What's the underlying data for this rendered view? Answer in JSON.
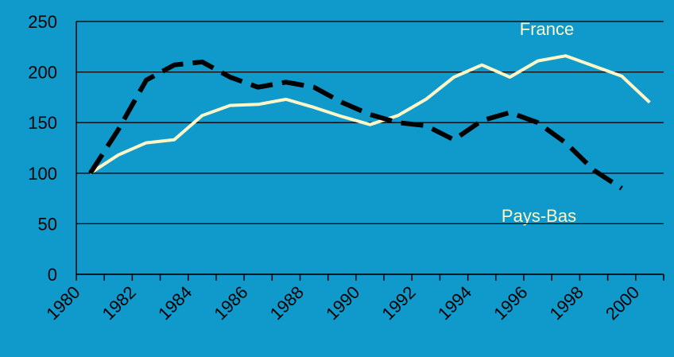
{
  "chart_data": {
    "type": "line",
    "categories": [
      "1980",
      null,
      "1982",
      null,
      "1984",
      null,
      "1986",
      null,
      "1988",
      null,
      "1990",
      null,
      "1992",
      null,
      "1994",
      null,
      "1996",
      null,
      "1998",
      null,
      "2000"
    ],
    "series": [
      {
        "name": "France",
        "color": "#fdf7c8",
        "dashed": false,
        "values": [
          100,
          118,
          130,
          133,
          157,
          167,
          168,
          173,
          165,
          156,
          148,
          157,
          173,
          195,
          207,
          195,
          211,
          216,
          206,
          196,
          170
        ]
      },
      {
        "name": "Pays-Bas",
        "color": "#000000",
        "dashed": true,
        "values": [
          100,
          143,
          192,
          207,
          210,
          195,
          185,
          190,
          185,
          170,
          158,
          150,
          147,
          133,
          152,
          160,
          150,
          130,
          103,
          85,
          null
        ]
      }
    ],
    "annotations": [
      "France",
      "Pays-Bas"
    ],
    "ylim": [
      0,
      250
    ],
    "yticks": [
      0,
      50,
      100,
      150,
      200,
      250
    ],
    "grid": true
  }
}
